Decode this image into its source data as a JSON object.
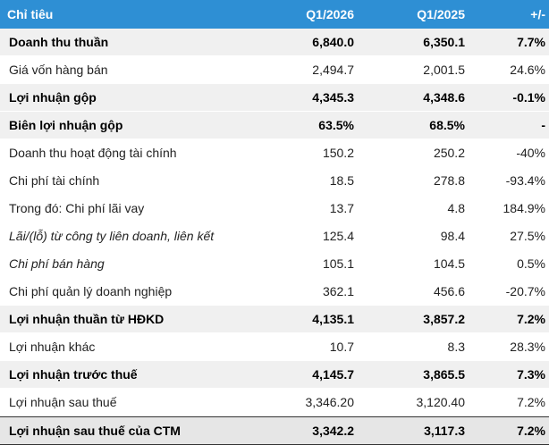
{
  "header": {
    "col0": "Chỉ tiêu",
    "col1": "Q1/2026",
    "col2": "Q1/2025",
    "col3": "+/-"
  },
  "rows": [
    {
      "label": "Doanh thu thuần",
      "q1_2026": "6,840.0",
      "q1_2025": "6,350.1",
      "change": "7.7%"
    },
    {
      "label": "Giá vốn hàng bán",
      "q1_2026": "2,494.7",
      "q1_2025": "2,001.5",
      "change": "24.6%"
    },
    {
      "label": "Lợi nhuận gộp",
      "q1_2026": "4,345.3",
      "q1_2025": "4,348.6",
      "change": "-0.1%"
    },
    {
      "label": "Biên lợi nhuận gộp",
      "q1_2026": "63.5%",
      "q1_2025": "68.5%",
      "change": "-"
    },
    {
      "label": "Doanh thu hoạt động tài chính",
      "q1_2026": "150.2",
      "q1_2025": "250.2",
      "change": "-40%"
    },
    {
      "label": "Chi phí tài chính",
      "q1_2026": "18.5",
      "q1_2025": "278.8",
      "change": "-93.4%"
    },
    {
      "label": "Trong đó: Chi phí lãi vay",
      "q1_2026": "13.7",
      "q1_2025": "4.8",
      "change": "184.9%"
    },
    {
      "label": "Lãi/(lỗ) từ công ty liên doanh, liên kết",
      "q1_2026": "125.4",
      "q1_2025": "98.4",
      "change": "27.5%"
    },
    {
      "label": "Chi phí bán hàng",
      "q1_2026": "105.1",
      "q1_2025": "104.5",
      "change": "0.5%"
    },
    {
      "label": "Chi phí quản lý doanh nghiệp",
      "q1_2026": "362.1",
      "q1_2025": "456.6",
      "change": "-20.7%"
    },
    {
      "label": "Lợi nhuận thuần từ HĐKD",
      "q1_2026": "4,135.1",
      "q1_2025": "3,857.2",
      "change": "7.2%"
    },
    {
      "label": "Lợi nhuận khác",
      "q1_2026": "10.7",
      "q1_2025": "8.3",
      "change": "28.3%"
    },
    {
      "label": "Lợi nhuận trước thuế",
      "q1_2026": "4,145.7",
      "q1_2025": "3,865.5",
      "change": "7.3%"
    },
    {
      "label": "Lợi nhuận sau thuế",
      "q1_2026": "3,346.20",
      "q1_2025": "3,120.40",
      "change": "7.2%"
    },
    {
      "label": "Lợi nhuận sau thuế của CTM",
      "q1_2026": "3,342.2",
      "q1_2025": "3,117.3",
      "change": "7.2%"
    }
  ]
}
